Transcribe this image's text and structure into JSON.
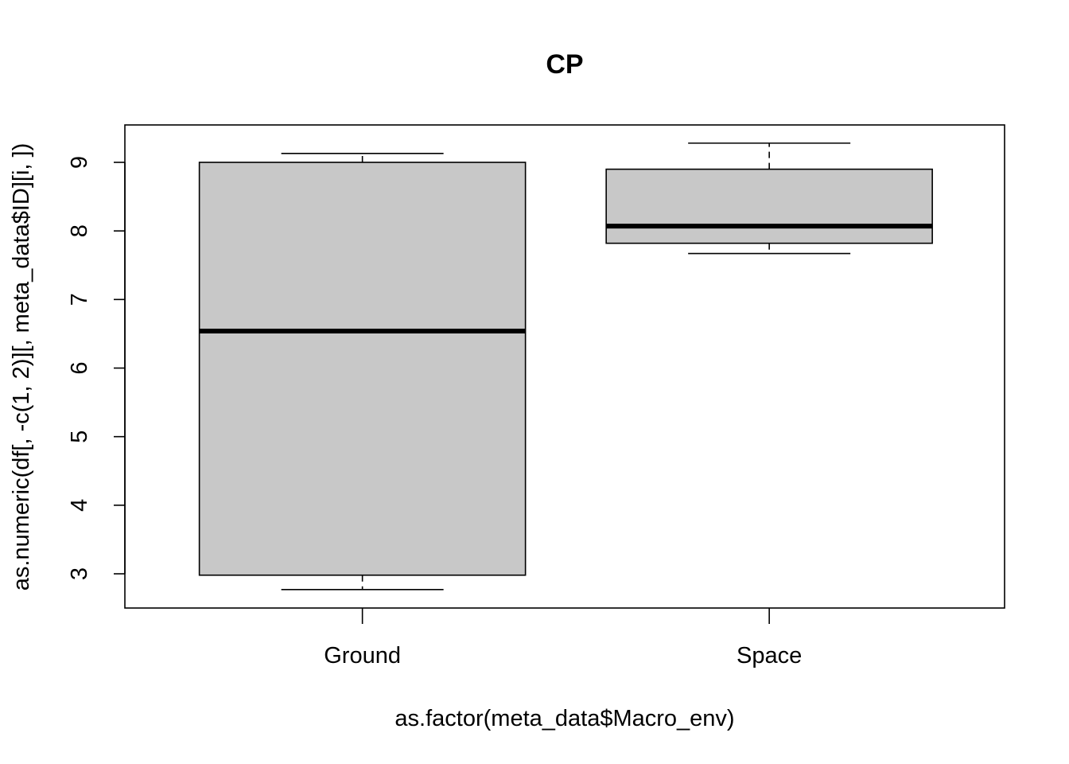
{
  "chart_data": {
    "type": "box",
    "title": "CP",
    "xlabel": "as.factor(meta_data$Macro_env)",
    "ylabel": "as.numeric(df[, -c(1, 2)][, meta_data$ID][i, ])",
    "categories": [
      "Ground",
      "Space"
    ],
    "boxes": [
      {
        "category": "Ground",
        "whisker_low": 2.77,
        "q1": 2.98,
        "median": 6.54,
        "q3": 9.0,
        "whisker_high": 9.13
      },
      {
        "category": "Space",
        "whisker_low": 7.67,
        "q1": 7.82,
        "median": 8.07,
        "q3": 8.9,
        "whisker_high": 9.28
      }
    ],
    "yticks": [
      3,
      4,
      5,
      6,
      7,
      8,
      9
    ],
    "ylim": [
      2.5,
      9.55
    ],
    "grid": false,
    "colors": {
      "box_fill": "#c8c8c8",
      "line": "#000000"
    }
  }
}
